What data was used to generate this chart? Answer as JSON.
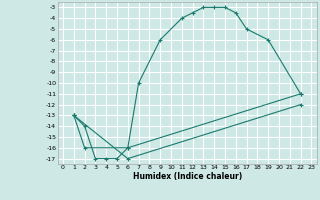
{
  "title": "",
  "xlabel": "Humidex (Indice chaleur)",
  "background_color": "#cde8e5",
  "grid_color": "#ffffff",
  "line_color": "#1a7a6e",
  "xlim": [
    -0.5,
    23.5
  ],
  "ylim": [
    -17.5,
    -2.5
  ],
  "xticks": [
    0,
    1,
    2,
    3,
    4,
    5,
    6,
    7,
    8,
    9,
    10,
    11,
    12,
    13,
    14,
    15,
    16,
    17,
    18,
    19,
    20,
    21,
    22,
    23
  ],
  "yticks": [
    -3,
    -4,
    -5,
    -6,
    -7,
    -8,
    -9,
    -10,
    -11,
    -12,
    -13,
    -14,
    -15,
    -16,
    -17
  ],
  "line1_x": [
    1,
    2,
    3,
    4,
    5,
    6,
    7,
    9,
    11,
    12,
    13,
    14,
    15,
    16,
    17,
    19,
    22
  ],
  "line1_y": [
    -13,
    -14,
    -17,
    -17,
    -17,
    -16,
    -10,
    -6,
    -4,
    -3.5,
    -3,
    -3,
    -3,
    -3.5,
    -5,
    -6,
    -11
  ],
  "line2_x": [
    1,
    2,
    6,
    22
  ],
  "line2_y": [
    -13,
    -16,
    -16,
    -11
  ],
  "line3_x": [
    1,
    6,
    22
  ],
  "line3_y": [
    -13,
    -17,
    -12
  ]
}
